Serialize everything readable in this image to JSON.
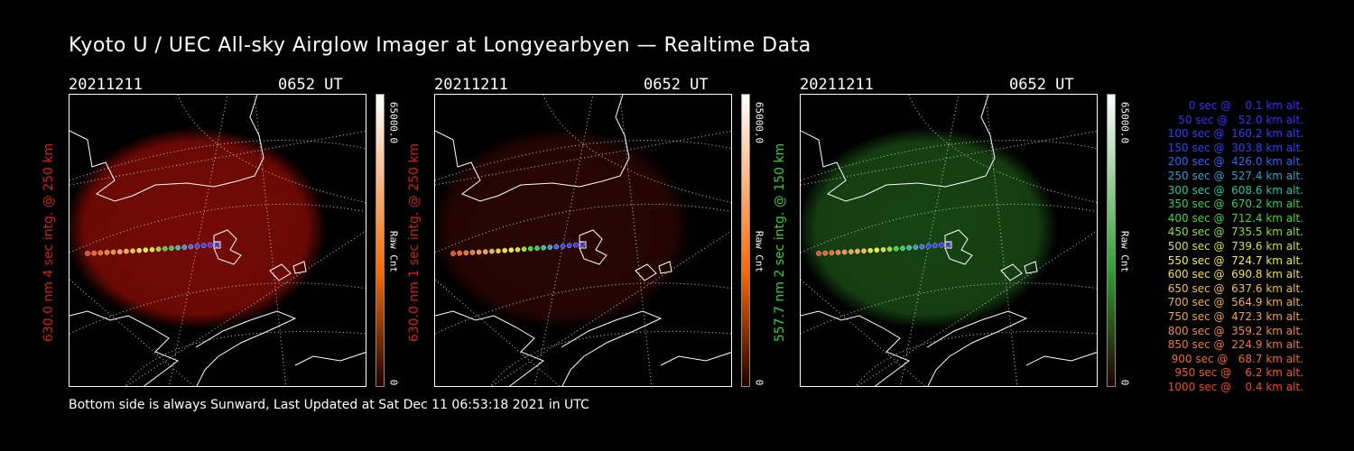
{
  "title": "Kyoto U / UEC All-sky Airglow Imager at Longyearbyen — Realtime Data",
  "footer": "Bottom side is always Sunward, Last Updated at Sat Dec 11 06:53:18 2021 in UTC",
  "panels": [
    {
      "date": "20211211",
      "time": "0652 UT",
      "label": "630.0 nm 4 sec intg. @ 250 km",
      "label_color": "#d02010",
      "glow_color": "#8a0c06",
      "glow_opacity": 0.85,
      "cbar_max": "65000.0",
      "cbar_unit": "Raw Cnt",
      "cbar_min": "0",
      "cbar_colors": [
        "#ffffff",
        "#ff6a00"
      ]
    },
    {
      "date": "20211211",
      "time": "0652 UT",
      "label": "630.0 nm 1 sec intg. @ 250 km",
      "label_color": "#d02010",
      "glow_color": "#4a0a08",
      "glow_opacity": 0.55,
      "cbar_max": "65000.0",
      "cbar_unit": "Raw Cnt",
      "cbar_min": "0",
      "cbar_colors": [
        "#ffffff",
        "#ff6a00"
      ]
    },
    {
      "date": "20211211",
      "time": "0652 UT",
      "label": "557.7 nm 2 sec intg. @ 150 km",
      "label_color": "#30d030",
      "glow_color": "#1f5a1a",
      "glow_opacity": 0.75,
      "cbar_max": "65000.0",
      "cbar_unit": "Raw Cnt",
      "cbar_min": "0",
      "cbar_colors": [
        "#ffffff",
        "#2ea02e"
      ]
    }
  ],
  "legend": [
    {
      "text": "0 sec @    0.1 km alt.",
      "color": "#3a2cff"
    },
    {
      "text": "50 sec @   52.0 km alt.",
      "color": "#3a2cff"
    },
    {
      "text": "100 sec @  160.2 km alt.",
      "color": "#2a40ff"
    },
    {
      "text": "150 sec @  303.8 km alt.",
      "color": "#2a40ff"
    },
    {
      "text": "200 sec @  426.0 km alt.",
      "color": "#2a64ff"
    },
    {
      "text": "250 sec @  527.4 km alt.",
      "color": "#2aa0c8"
    },
    {
      "text": "300 sec @  608.6 km alt.",
      "color": "#20c8a0"
    },
    {
      "text": "350 sec @  670.2 km alt.",
      "color": "#30d050"
    },
    {
      "text": "400 sec @  712.4 km alt.",
      "color": "#40d830"
    },
    {
      "text": "450 sec @  735.5 km alt.",
      "color": "#90e030"
    },
    {
      "text": "500 sec @  739.6 km alt.",
      "color": "#d0e030"
    },
    {
      "text": "550 sec @  724.7 km alt.",
      "color": "#f0f030"
    },
    {
      "text": "600 sec @  690.8 km alt.",
      "color": "#f0e040"
    },
    {
      "text": "650 sec @  637.6 km alt.",
      "color": "#f0c040"
    },
    {
      "text": "700 sec @  564.9 km alt.",
      "color": "#f0b040"
    },
    {
      "text": "750 sec @  472.3 km alt.",
      "color": "#f0a040"
    },
    {
      "text": "800 sec @  359.2 km alt.",
      "color": "#f08a40"
    },
    {
      "text": "850 sec @  224.9 km alt.",
      "color": "#f07a30"
    },
    {
      "text": "900 sec @   68.7 km alt.",
      "color": "#f06a20"
    },
    {
      "text": "950 sec @    6.2 km alt.",
      "color": "#f05a20"
    },
    {
      "text": "1000 sec @    0.4 km alt.",
      "color": "#f04a18"
    }
  ]
}
